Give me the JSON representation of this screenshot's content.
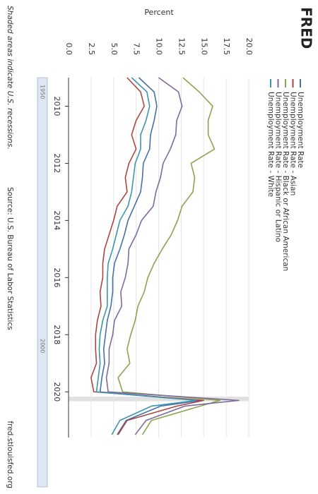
{
  "chart_data": {
    "type": "line",
    "logo": "FRED",
    "y_label": "Percent",
    "note": "Shaded areas indicate U.S. recessions.",
    "source": "Source: U.S. Bureau of Labor Statistics",
    "url": "fred.stlouisfed.org",
    "navigator_labels": [
      "1950",
      "2000"
    ],
    "x": [
      2009.0,
      2009.5,
      2010.0,
      2010.5,
      2011.0,
      2011.5,
      2012.0,
      2012.5,
      2013.0,
      2013.5,
      2014.0,
      2014.5,
      2015.0,
      2015.5,
      2016.0,
      2016.5,
      2017.0,
      2017.5,
      2018.0,
      2018.5,
      2019.0,
      2019.5,
      2020.0,
      2020.3,
      2020.5,
      2021.0,
      2021.5
    ],
    "series": [
      {
        "name": "Unemployment Rate",
        "color": "#4572a7",
        "values": [
          7.8,
          9.5,
          9.8,
          9.5,
          9.1,
          9.0,
          8.3,
          8.2,
          8.0,
          7.3,
          6.6,
          6.2,
          5.7,
          5.1,
          4.9,
          4.9,
          4.7,
          4.3,
          4.1,
          3.9,
          4.0,
          3.7,
          3.5,
          14.7,
          10.2,
          6.4,
          5.4
        ]
      },
      {
        "name": "Unemployment Rate - Asian",
        "color": "#aa4643",
        "values": [
          6.5,
          8.0,
          8.4,
          7.5,
          7.0,
          7.5,
          6.7,
          6.3,
          6.5,
          5.4,
          5.0,
          4.5,
          4.0,
          3.8,
          3.8,
          3.5,
          3.6,
          3.2,
          3.0,
          3.0,
          3.1,
          2.5,
          2.8,
          15.0,
          12.0,
          6.5,
          5.5
        ]
      },
      {
        "name": "Unemployment Rate - Black or African American",
        "color": "#89a54e",
        "values": [
          12.7,
          14.5,
          16.0,
          15.5,
          15.5,
          16.2,
          13.6,
          14.0,
          13.8,
          12.6,
          12.1,
          11.4,
          10.4,
          9.5,
          8.8,
          8.4,
          7.7,
          7.4,
          6.9,
          6.5,
          6.8,
          5.5,
          6.0,
          16.8,
          14.6,
          9.2,
          8.2
        ]
      },
      {
        "name": "Unemployment Rate - Hispanic or Latino",
        "color": "#80699b",
        "values": [
          10.0,
          12.2,
          12.6,
          12.0,
          11.9,
          11.3,
          10.5,
          10.2,
          9.7,
          9.4,
          8.1,
          7.5,
          6.7,
          6.6,
          6.3,
          5.8,
          5.9,
          5.1,
          4.9,
          4.5,
          4.5,
          4.2,
          4.4,
          18.9,
          12.9,
          8.6,
          7.4
        ]
      },
      {
        "name": "Unemployment Rate - White",
        "color": "#3d96ae",
        "values": [
          7.0,
          8.7,
          9.0,
          8.6,
          8.0,
          8.0,
          7.4,
          7.2,
          7.0,
          6.6,
          5.7,
          5.3,
          4.9,
          4.4,
          4.3,
          4.3,
          4.3,
          3.8,
          3.5,
          3.4,
          3.5,
          3.3,
          3.1,
          14.2,
          9.2,
          5.7,
          4.8
        ]
      }
    ],
    "recessions": [
      [
        2020.17,
        2020.33
      ]
    ],
    "xlim": [
      2009.0,
      2021.6
    ],
    "xticks": [
      2010,
      2012,
      2014,
      2016,
      2018,
      2020
    ],
    "ylim": [
      0,
      20
    ],
    "yticks": [
      {
        "value": 0,
        "label": "0.0"
      },
      {
        "value": 2.5,
        "label": "2.5"
      },
      {
        "value": 5,
        "label": "5.0"
      },
      {
        "value": 7.5,
        "label": "7.5"
      },
      {
        "value": 10,
        "label": "10.0"
      },
      {
        "value": 12.5,
        "label": "12.5"
      },
      {
        "value": 15,
        "label": "15.0"
      },
      {
        "value": 17.5,
        "label": "17.5"
      },
      {
        "value": 20,
        "label": "20.0"
      }
    ],
    "grid": true
  }
}
